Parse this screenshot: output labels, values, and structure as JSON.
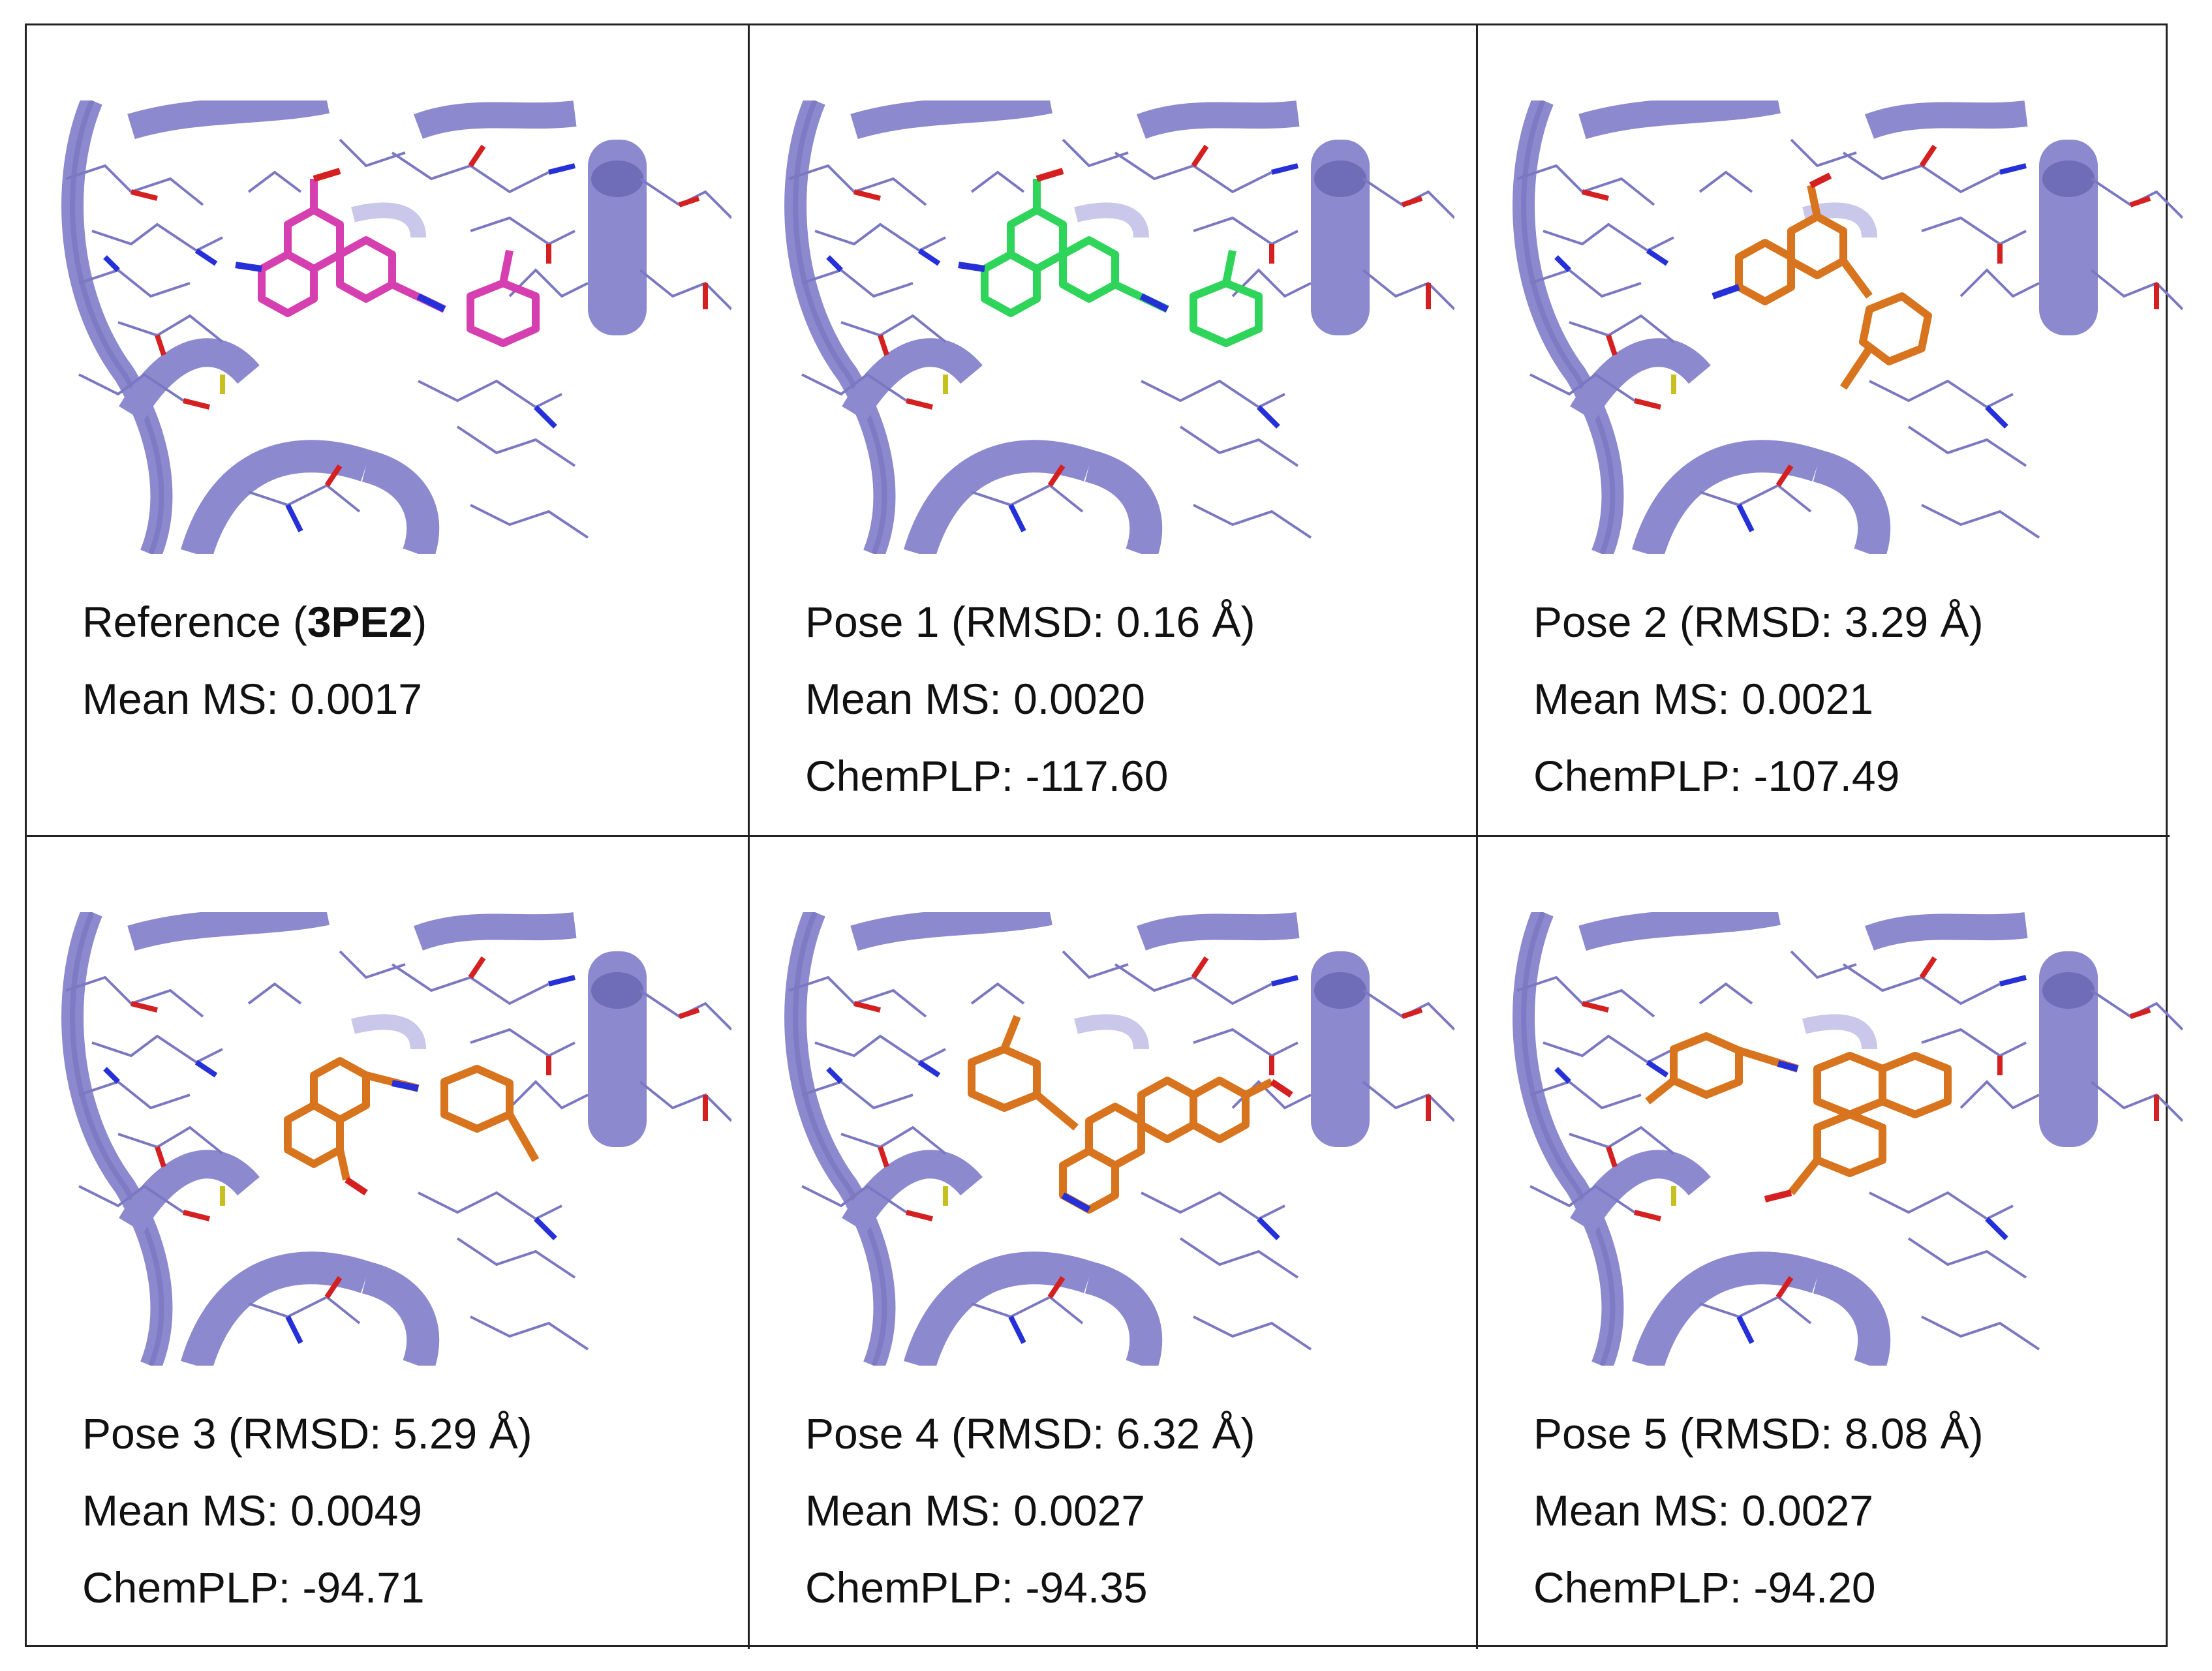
{
  "panels": [
    {
      "label_prefix": "Reference (",
      "label_code": "3PE2",
      "label_suffix": ")",
      "mean_ms": "Mean MS: 0.0017",
      "chemplp": "",
      "ligand_color": "#d63fb0"
    },
    {
      "label": "Pose 1 (RMSD: 0.16 Å)",
      "mean_ms": "Mean MS: 0.0020",
      "chemplp": "ChemPLP: -117.60",
      "ligand_color": "#2fd45a"
    },
    {
      "label": "Pose 2 (RMSD: 3.29 Å)",
      "mean_ms": "Mean MS: 0.0021",
      "chemplp": "ChemPLP: -107.49",
      "ligand_color": "#d8731e"
    },
    {
      "label": "Pose 3 (RMSD: 5.29 Å)",
      "mean_ms": "Mean MS: 0.0049",
      "chemplp": "ChemPLP: -94.71",
      "ligand_color": "#d8731e"
    },
    {
      "label": "Pose 4 (RMSD: 6.32 Å)",
      "mean_ms": "Mean MS: 0.0027",
      "chemplp": "ChemPLP: -94.35",
      "ligand_color": "#d8731e"
    },
    {
      "label": "Pose 5 (RMSD: 8.08 Å)",
      "mean_ms": "Mean MS: 0.0027",
      "chemplp": "ChemPLP: -94.20",
      "ligand_color": "#d8731e"
    }
  ],
  "colors": {
    "ribbon": "#8c89cf",
    "ribbon_dark": "#6f6cb8",
    "stick": "#7b78c2",
    "oxygen": "#d42020",
    "nitrogen": "#2530d8",
    "sulfur": "#c8c020"
  }
}
